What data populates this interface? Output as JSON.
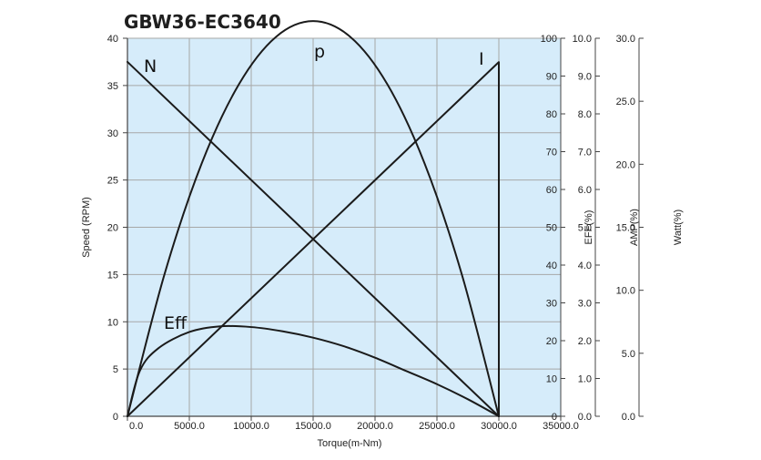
{
  "chart_data": {
    "type": "line",
    "title": "GBW36-EC3640",
    "xlabel": "Torque(m-Nm)",
    "xlim": [
      0,
      35000
    ],
    "x_ticks": [
      "0.0",
      "5000.0",
      "10000.0",
      "15000.0",
      "20000.0",
      "25000.0",
      "30000.0",
      "35000.0"
    ],
    "grid": true,
    "colors": {
      "plot_background": "#d6ecfa",
      "grid": "#a7a7a7",
      "lines": "#1b1b1b",
      "axes": "#444444"
    },
    "axes": [
      {
        "label": "Speed (RPM)",
        "lim": [
          0,
          40
        ],
        "ticks": [
          "0",
          "5",
          "10",
          "15",
          "20",
          "25",
          "30",
          "35",
          "40"
        ]
      },
      {
        "label": "EFF(%)",
        "lim": [
          0,
          100
        ],
        "ticks": [
          "0",
          "10",
          "20",
          "30",
          "40",
          "50",
          "60",
          "70",
          "80",
          "90",
          "100"
        ]
      },
      {
        "label": "AMP(%)",
        "lim": [
          0,
          10
        ],
        "ticks": [
          "0.0",
          "1.0",
          "2.0",
          "3.0",
          "4.0",
          "5.0",
          "6.0",
          "7.0",
          "8.0",
          "9.0",
          "10.0"
        ]
      },
      {
        "label": "Watt(%)",
        "lim": [
          0,
          30
        ],
        "ticks": [
          "0.0",
          "5.0",
          "10.0",
          "15.0",
          "20.0",
          "25.0",
          "30.0"
        ]
      }
    ],
    "series": [
      {
        "name": "N",
        "axis": 0,
        "points": [
          [
            0,
            37.5
          ],
          [
            30000,
            0
          ]
        ]
      },
      {
        "name": "I",
        "axis": 2,
        "points": [
          [
            0,
            0
          ],
          [
            30000,
            9.37
          ],
          [
            30000,
            0
          ]
        ]
      },
      {
        "name": "p",
        "axis": 3,
        "points": [
          [
            0,
            0
          ],
          [
            3000,
            11.29
          ],
          [
            6000,
            20.07
          ],
          [
            9000,
            26.34
          ],
          [
            12000,
            30.11
          ],
          [
            15000,
            31.36
          ],
          [
            18000,
            30.11
          ],
          [
            21000,
            26.34
          ],
          [
            24000,
            20.07
          ],
          [
            27000,
            11.29
          ],
          [
            30000,
            0
          ]
        ]
      },
      {
        "name": "Eff",
        "axis": 1,
        "points": [
          [
            0,
            0
          ],
          [
            1000,
            12.0
          ],
          [
            2500,
            18.0
          ],
          [
            5000,
            22.3
          ],
          [
            7500,
            23.8
          ],
          [
            10000,
            23.6
          ],
          [
            12500,
            22.5
          ],
          [
            15000,
            20.8
          ],
          [
            17500,
            18.5
          ],
          [
            20000,
            15.5
          ],
          [
            22500,
            12.0
          ],
          [
            25000,
            8.5
          ],
          [
            27500,
            4.5
          ],
          [
            30000,
            0
          ]
        ]
      }
    ]
  }
}
